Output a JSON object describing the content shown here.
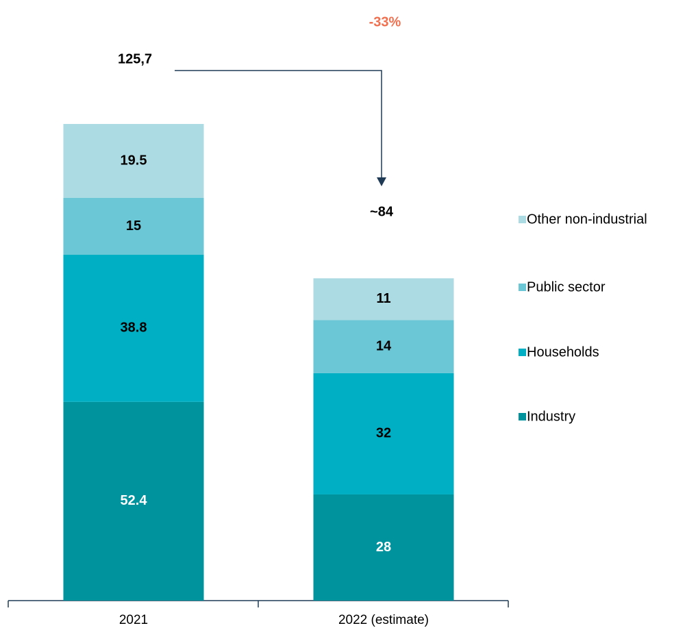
{
  "chart_data": {
    "type": "stacked_bar",
    "categories": [
      "2021",
      "2022 (estimate)"
    ],
    "series": [
      {
        "name": "Industry",
        "color": "#00939e",
        "label_color": "#ffffff",
        "values": [
          52.4,
          28
        ]
      },
      {
        "name": "Households",
        "color": "#00afc3",
        "label_color": "#000000",
        "values": [
          38.8,
          32
        ]
      },
      {
        "name": "Public sector",
        "color": "#6bc6d6",
        "label_color": "#000000",
        "values": [
          15,
          14
        ]
      },
      {
        "name": "Other non-industrial",
        "color": "#acdbe3",
        "label_color": "#000000",
        "values": [
          19.5,
          11
        ]
      }
    ],
    "annotations": [
      "125,7",
      "~84",
      "-33%"
    ],
    "annotation_color": "#f0704f"
  }
}
